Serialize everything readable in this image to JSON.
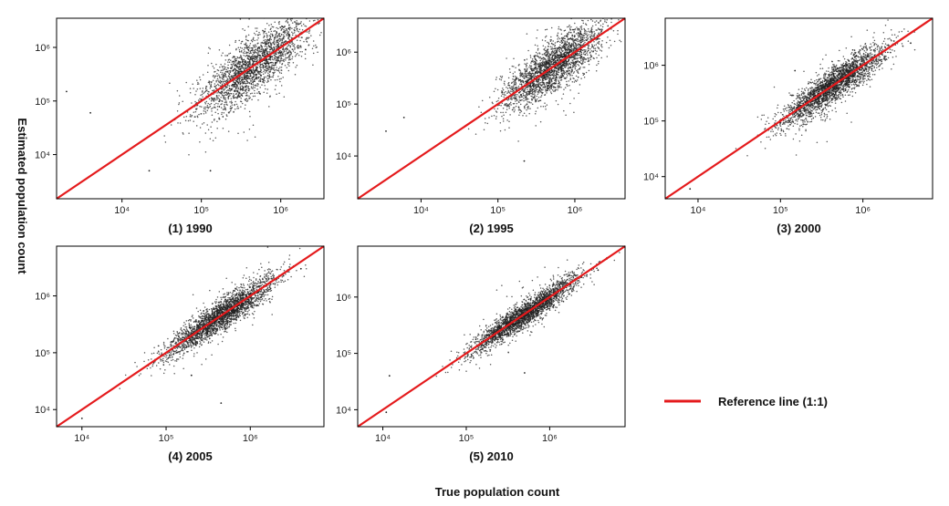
{
  "chart_data": {
    "type": "scatter",
    "xlabel": "True population count",
    "ylabel": "Estimated population count",
    "scale": "log",
    "legend": {
      "label": "Reference line (1:1)",
      "color": "#e41a1c",
      "placement": "bottom-right"
    },
    "point_color": "#222222",
    "panels": [
      {
        "title": "(1) 1990",
        "xlim": [
          1500,
          3500000
        ],
        "ylim": [
          1500,
          3500000
        ],
        "x_ticks": [
          10000,
          100000,
          1000000
        ],
        "y_ticks": [
          10000,
          100000,
          1000000
        ],
        "n_points": 2200,
        "center_log10": 5.65,
        "spread_log10": 0.35,
        "noise_log10": 0.27,
        "sample_points": [
          [
            2000,
            150000
          ],
          [
            4000,
            60000
          ],
          [
            22000,
            5000
          ],
          [
            130000,
            5000
          ],
          [
            1000000,
            1000000
          ]
        ]
      },
      {
        "title": "(2) 1995",
        "xlim": [
          1500,
          4500000
        ],
        "ylim": [
          1500,
          4500000
        ],
        "x_ticks": [
          10000,
          100000,
          1000000
        ],
        "y_ticks": [
          10000,
          100000,
          1000000
        ],
        "n_points": 2400,
        "center_log10": 5.7,
        "spread_log10": 0.33,
        "noise_log10": 0.24,
        "sample_points": [
          [
            3500,
            30000
          ],
          [
            6000,
            55000
          ],
          [
            220000,
            8000
          ],
          [
            1200000,
            1100000
          ]
        ]
      },
      {
        "title": "(3) 2000",
        "xlim": [
          4000,
          7000000
        ],
        "ylim": [
          4000,
          7000000
        ],
        "x_ticks": [
          10000,
          100000,
          1000000
        ],
        "y_ticks": [
          10000,
          100000,
          1000000
        ],
        "n_points": 2600,
        "center_log10": 5.65,
        "spread_log10": 0.32,
        "noise_log10": 0.15,
        "sample_points": [
          [
            8000,
            6000
          ],
          [
            150000,
            800000
          ],
          [
            3800000,
            2500000
          ]
        ]
      },
      {
        "title": "(4) 2005",
        "xlim": [
          5000,
          7500000
        ],
        "ylim": [
          5000,
          7500000
        ],
        "x_ticks": [
          10000,
          100000,
          1000000
        ],
        "y_ticks": [
          10000,
          100000,
          1000000
        ],
        "n_points": 2600,
        "center_log10": 5.65,
        "spread_log10": 0.33,
        "noise_log10": 0.13,
        "sample_points": [
          [
            10000,
            7000
          ],
          [
            200000,
            40000
          ],
          [
            450000,
            13000
          ],
          [
            4000000,
            3000000
          ]
        ]
      },
      {
        "title": "(5) 2010",
        "xlim": [
          5000,
          8000000
        ],
        "ylim": [
          5000,
          8000000
        ],
        "x_ticks": [
          10000,
          100000,
          1000000
        ],
        "y_ticks": [
          10000,
          100000,
          1000000
        ],
        "n_points": 2600,
        "center_log10": 5.7,
        "spread_log10": 0.32,
        "noise_log10": 0.11,
        "sample_points": [
          [
            11000,
            9000
          ],
          [
            12000,
            40000
          ],
          [
            500000,
            45000
          ],
          [
            3800000,
            3000000
          ]
        ]
      }
    ]
  }
}
